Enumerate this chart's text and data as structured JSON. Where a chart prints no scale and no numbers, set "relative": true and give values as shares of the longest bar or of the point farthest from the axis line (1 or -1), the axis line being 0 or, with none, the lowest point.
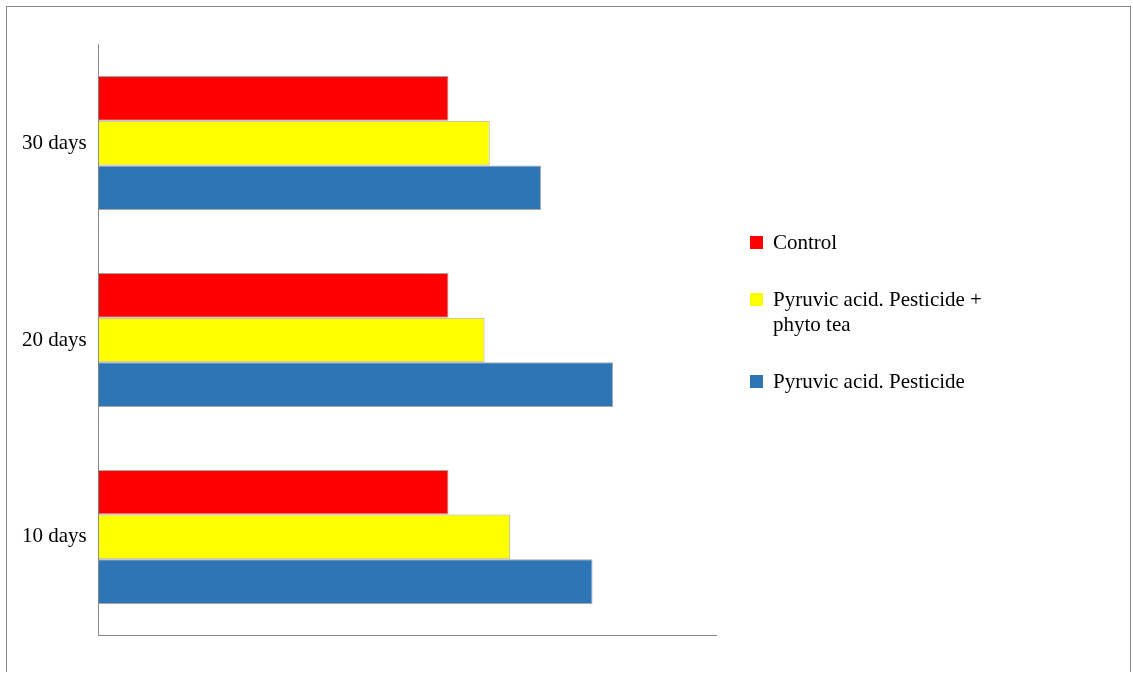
{
  "chart_data": {
    "type": "bar",
    "orientation": "horizontal",
    "relative": true,
    "legend": "right",
    "categories": [
      "30 days",
      "20 days",
      "10 days"
    ],
    "series": [
      {
        "name": "Control",
        "color": "#ff0000",
        "values": [
          0.68,
          0.68,
          0.68
        ]
      },
      {
        "name": "Pyruvic acid. Pesticide + phyto tea",
        "color": "#ffff00",
        "values": [
          0.76,
          0.75,
          0.8
        ]
      },
      {
        "name": "Pyruvic acid. Pesticide",
        "color": "#2e75b6",
        "values": [
          0.86,
          1,
          0.96
        ]
      }
    ]
  }
}
